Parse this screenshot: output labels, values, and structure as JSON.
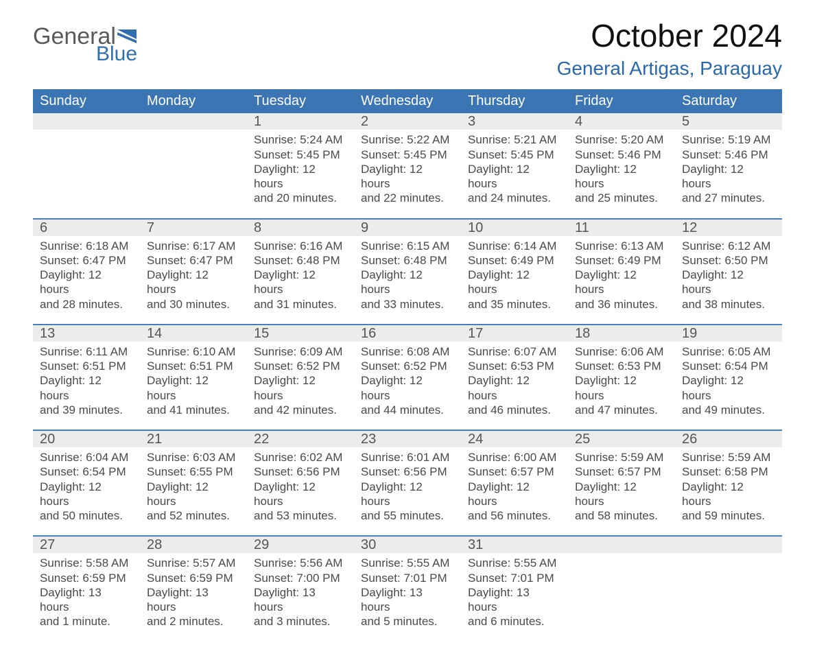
{
  "colors": {
    "header_blue": "#3b75b3",
    "accent_blue": "#2a68ad",
    "row_divider_blue": "#4a80ba",
    "date_bg": "#ececec",
    "background": "#ffffff",
    "text_dark": "#222222",
    "text_gray": "#4a4a4a",
    "logo_gray": "#5a5a5a",
    "logo_blue": "#2f6fb0"
  },
  "typography": {
    "font_family": "Segoe UI, Arial, Helvetica, sans-serif",
    "title_month_fontsize": 46,
    "title_location_fontsize": 28,
    "dow_fontsize": 20,
    "date_fontsize": 20,
    "cell_fontsize": 17
  },
  "logo": {
    "word1": "General",
    "word2": "Blue"
  },
  "title": {
    "month": "October 2024",
    "location": "General Artigas, Paraguay"
  },
  "days_of_week": [
    "Sunday",
    "Monday",
    "Tuesday",
    "Wednesday",
    "Thursday",
    "Friday",
    "Saturday"
  ],
  "calendar": {
    "type": "table",
    "columns": 7,
    "rows": 5,
    "weeks": [
      [
        {
          "date": "",
          "sunrise": "",
          "sunset": "",
          "daylight1": "",
          "daylight2": ""
        },
        {
          "date": "",
          "sunrise": "",
          "sunset": "",
          "daylight1": "",
          "daylight2": ""
        },
        {
          "date": "1",
          "sunrise": "Sunrise: 5:24 AM",
          "sunset": "Sunset: 5:45 PM",
          "daylight1": "Daylight: 12 hours",
          "daylight2": "and 20 minutes."
        },
        {
          "date": "2",
          "sunrise": "Sunrise: 5:22 AM",
          "sunset": "Sunset: 5:45 PM",
          "daylight1": "Daylight: 12 hours",
          "daylight2": "and 22 minutes."
        },
        {
          "date": "3",
          "sunrise": "Sunrise: 5:21 AM",
          "sunset": "Sunset: 5:45 PM",
          "daylight1": "Daylight: 12 hours",
          "daylight2": "and 24 minutes."
        },
        {
          "date": "4",
          "sunrise": "Sunrise: 5:20 AM",
          "sunset": "Sunset: 5:46 PM",
          "daylight1": "Daylight: 12 hours",
          "daylight2": "and 25 minutes."
        },
        {
          "date": "5",
          "sunrise": "Sunrise: 5:19 AM",
          "sunset": "Sunset: 5:46 PM",
          "daylight1": "Daylight: 12 hours",
          "daylight2": "and 27 minutes."
        }
      ],
      [
        {
          "date": "6",
          "sunrise": "Sunrise: 6:18 AM",
          "sunset": "Sunset: 6:47 PM",
          "daylight1": "Daylight: 12 hours",
          "daylight2": "and 28 minutes."
        },
        {
          "date": "7",
          "sunrise": "Sunrise: 6:17 AM",
          "sunset": "Sunset: 6:47 PM",
          "daylight1": "Daylight: 12 hours",
          "daylight2": "and 30 minutes."
        },
        {
          "date": "8",
          "sunrise": "Sunrise: 6:16 AM",
          "sunset": "Sunset: 6:48 PM",
          "daylight1": "Daylight: 12 hours",
          "daylight2": "and 31 minutes."
        },
        {
          "date": "9",
          "sunrise": "Sunrise: 6:15 AM",
          "sunset": "Sunset: 6:48 PM",
          "daylight1": "Daylight: 12 hours",
          "daylight2": "and 33 minutes."
        },
        {
          "date": "10",
          "sunrise": "Sunrise: 6:14 AM",
          "sunset": "Sunset: 6:49 PM",
          "daylight1": "Daylight: 12 hours",
          "daylight2": "and 35 minutes."
        },
        {
          "date": "11",
          "sunrise": "Sunrise: 6:13 AM",
          "sunset": "Sunset: 6:49 PM",
          "daylight1": "Daylight: 12 hours",
          "daylight2": "and 36 minutes."
        },
        {
          "date": "12",
          "sunrise": "Sunrise: 6:12 AM",
          "sunset": "Sunset: 6:50 PM",
          "daylight1": "Daylight: 12 hours",
          "daylight2": "and 38 minutes."
        }
      ],
      [
        {
          "date": "13",
          "sunrise": "Sunrise: 6:11 AM",
          "sunset": "Sunset: 6:51 PM",
          "daylight1": "Daylight: 12 hours",
          "daylight2": "and 39 minutes."
        },
        {
          "date": "14",
          "sunrise": "Sunrise: 6:10 AM",
          "sunset": "Sunset: 6:51 PM",
          "daylight1": "Daylight: 12 hours",
          "daylight2": "and 41 minutes."
        },
        {
          "date": "15",
          "sunrise": "Sunrise: 6:09 AM",
          "sunset": "Sunset: 6:52 PM",
          "daylight1": "Daylight: 12 hours",
          "daylight2": "and 42 minutes."
        },
        {
          "date": "16",
          "sunrise": "Sunrise: 6:08 AM",
          "sunset": "Sunset: 6:52 PM",
          "daylight1": "Daylight: 12 hours",
          "daylight2": "and 44 minutes."
        },
        {
          "date": "17",
          "sunrise": "Sunrise: 6:07 AM",
          "sunset": "Sunset: 6:53 PM",
          "daylight1": "Daylight: 12 hours",
          "daylight2": "and 46 minutes."
        },
        {
          "date": "18",
          "sunrise": "Sunrise: 6:06 AM",
          "sunset": "Sunset: 6:53 PM",
          "daylight1": "Daylight: 12 hours",
          "daylight2": "and 47 minutes."
        },
        {
          "date": "19",
          "sunrise": "Sunrise: 6:05 AM",
          "sunset": "Sunset: 6:54 PM",
          "daylight1": "Daylight: 12 hours",
          "daylight2": "and 49 minutes."
        }
      ],
      [
        {
          "date": "20",
          "sunrise": "Sunrise: 6:04 AM",
          "sunset": "Sunset: 6:54 PM",
          "daylight1": "Daylight: 12 hours",
          "daylight2": "and 50 minutes."
        },
        {
          "date": "21",
          "sunrise": "Sunrise: 6:03 AM",
          "sunset": "Sunset: 6:55 PM",
          "daylight1": "Daylight: 12 hours",
          "daylight2": "and 52 minutes."
        },
        {
          "date": "22",
          "sunrise": "Sunrise: 6:02 AM",
          "sunset": "Sunset: 6:56 PM",
          "daylight1": "Daylight: 12 hours",
          "daylight2": "and 53 minutes."
        },
        {
          "date": "23",
          "sunrise": "Sunrise: 6:01 AM",
          "sunset": "Sunset: 6:56 PM",
          "daylight1": "Daylight: 12 hours",
          "daylight2": "and 55 minutes."
        },
        {
          "date": "24",
          "sunrise": "Sunrise: 6:00 AM",
          "sunset": "Sunset: 6:57 PM",
          "daylight1": "Daylight: 12 hours",
          "daylight2": "and 56 minutes."
        },
        {
          "date": "25",
          "sunrise": "Sunrise: 5:59 AM",
          "sunset": "Sunset: 6:57 PM",
          "daylight1": "Daylight: 12 hours",
          "daylight2": "and 58 minutes."
        },
        {
          "date": "26",
          "sunrise": "Sunrise: 5:59 AM",
          "sunset": "Sunset: 6:58 PM",
          "daylight1": "Daylight: 12 hours",
          "daylight2": "and 59 minutes."
        }
      ],
      [
        {
          "date": "27",
          "sunrise": "Sunrise: 5:58 AM",
          "sunset": "Sunset: 6:59 PM",
          "daylight1": "Daylight: 13 hours",
          "daylight2": "and 1 minute."
        },
        {
          "date": "28",
          "sunrise": "Sunrise: 5:57 AM",
          "sunset": "Sunset: 6:59 PM",
          "daylight1": "Daylight: 13 hours",
          "daylight2": "and 2 minutes."
        },
        {
          "date": "29",
          "sunrise": "Sunrise: 5:56 AM",
          "sunset": "Sunset: 7:00 PM",
          "daylight1": "Daylight: 13 hours",
          "daylight2": "and 3 minutes."
        },
        {
          "date": "30",
          "sunrise": "Sunrise: 5:55 AM",
          "sunset": "Sunset: 7:01 PM",
          "daylight1": "Daylight: 13 hours",
          "daylight2": "and 5 minutes."
        },
        {
          "date": "31",
          "sunrise": "Sunrise: 5:55 AM",
          "sunset": "Sunset: 7:01 PM",
          "daylight1": "Daylight: 13 hours",
          "daylight2": "and 6 minutes."
        },
        {
          "date": "",
          "sunrise": "",
          "sunset": "",
          "daylight1": "",
          "daylight2": ""
        },
        {
          "date": "",
          "sunrise": "",
          "sunset": "",
          "daylight1": "",
          "daylight2": ""
        }
      ]
    ]
  }
}
